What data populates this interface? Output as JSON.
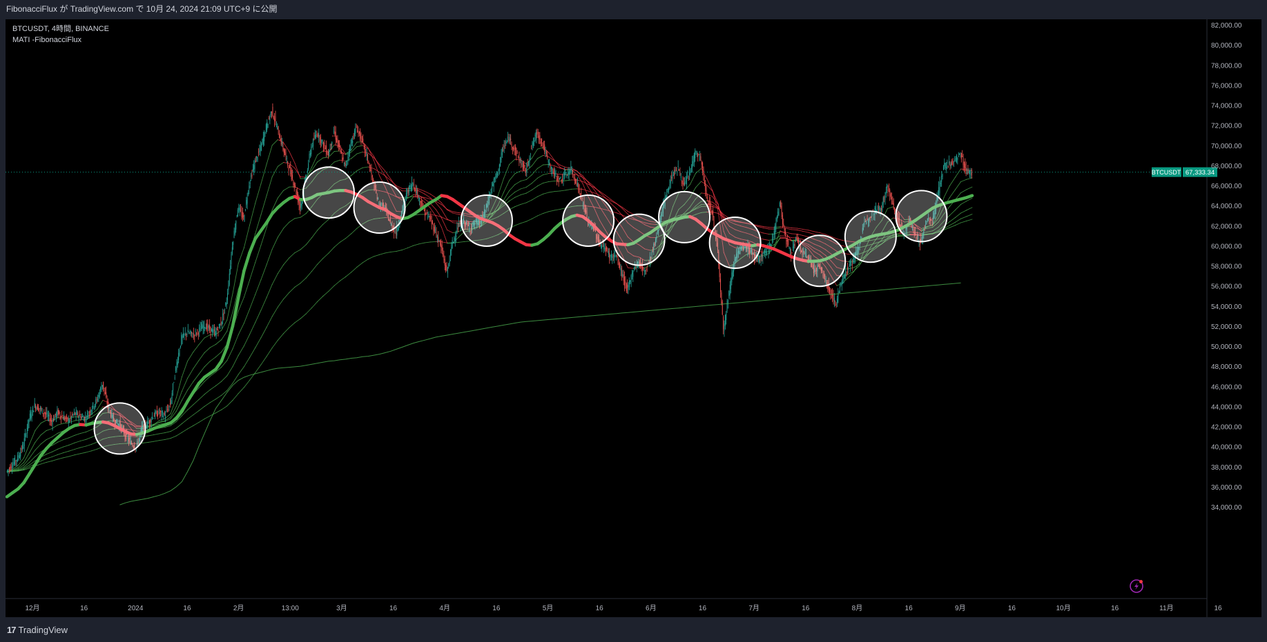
{
  "header": {
    "published_text": "FibonacciFlux が TradingView.com で 10月 24, 2024 21:09 UTC+9 に公開"
  },
  "legend": {
    "symbol_line": "BTCUSDT, 4時間, BINANCE",
    "indicator_line": "MATI -FibonacciFlux"
  },
  "footer": {
    "logo_glyph": "17",
    "brand": "TradingView"
  },
  "price_tag": {
    "symbol": "BTCUSDT",
    "value": "67,333.34",
    "price": 67333.34
  },
  "colors": {
    "background": "#000000",
    "frame": "#1e222d",
    "bull": "#4caf50",
    "bear": "#f23645",
    "tag": "#089981",
    "highlight": "#ffffff"
  },
  "chart_data": {
    "type": "line",
    "title": "",
    "ylim": [
      33500,
      83000
    ],
    "y_ticks": [
      "82,000.00",
      "80,000.00",
      "78,000.00",
      "76,000.00",
      "74,000.00",
      "72,000.00",
      "70,000.00",
      "68,000.00",
      "66,000.00",
      "64,000.00",
      "62,000.00",
      "60,000.00",
      "58,000.00",
      "56,000.00",
      "54,000.00",
      "52,000.00",
      "50,000.00",
      "48,000.00",
      "46,000.00",
      "44,000.00",
      "42,000.00",
      "40,000.00",
      "38,000.00",
      "36,000.00",
      "34,000.00"
    ],
    "x_ticks": [
      "12月",
      "16",
      "2024",
      "16",
      "2月",
      "13:00",
      "3月",
      "16",
      "4月",
      "16",
      "5月",
      "16",
      "6月",
      "16",
      "7月",
      "16",
      "8月",
      "16",
      "9月",
      "16",
      "10月",
      "16",
      "11月",
      "16"
    ],
    "x_tick_count": 24,
    "series": [
      {
        "role": "price",
        "values": [
          37500,
          38200,
          38900,
          40200,
          42800,
          44100,
          43700,
          43200,
          42500,
          43400,
          42900,
          42600,
          43300,
          43000,
          42800,
          43800,
          44600,
          46300,
          43900,
          42600,
          42200,
          41200,
          40400,
          39900,
          41800,
          42300,
          43100,
          43400,
          43100,
          44200,
          47800,
          50800,
          51400,
          51100,
          51500,
          52100,
          51700,
          51300,
          52300,
          54500,
          60100,
          63800,
          62700,
          66200,
          68300,
          69700,
          71800,
          73500,
          71600,
          69700,
          67800,
          66100,
          63800,
          66700,
          69900,
          71300,
          70200,
          69100,
          71400,
          69600,
          67800,
          70200,
          71800,
          70400,
          68600,
          66200,
          64100,
          63800,
          62200,
          61300,
          63300,
          65400,
          66300,
          64800,
          63400,
          62700,
          61400,
          59800,
          57300,
          60300,
          61900,
          62400,
          61700,
          62300,
          62400,
          63800,
          65900,
          67300,
          69800,
          70700,
          69600,
          68400,
          67400,
          69800,
          71300,
          70100,
          68300,
          67100,
          66500,
          67000,
          67600,
          66300,
          64500,
          62400,
          61800,
          60200,
          59800,
          58900,
          59000,
          57200,
          55500,
          57600,
          58400,
          57400,
          58700,
          60600,
          63200,
          65300,
          67200,
          67700,
          65900,
          67200,
          69300,
          68600,
          64800,
          63300,
          59600,
          51700,
          55400,
          58800,
          59600,
          59900,
          59400,
          58400,
          59200,
          59600,
          61400,
          64300,
          60700,
          59300,
          60700,
          59200,
          58900,
          57600,
          57900,
          56700,
          55300,
          54200,
          56700,
          57800,
          58500,
          60000,
          62200,
          63100,
          63600,
          63800,
          65900,
          64200,
          62400,
          61200,
          62700,
          60900,
          60300,
          62700,
          62500,
          65100,
          67900,
          68100,
          68400,
          69200,
          67400,
          67333
        ]
      },
      {
        "role": "ma-main",
        "values": [
          35000,
          35400,
          35800,
          36400,
          37300,
          38200,
          39100,
          39800,
          40400,
          40900,
          41400,
          41800,
          42100,
          42200,
          42150,
          42300,
          42400,
          42450,
          42350,
          42100,
          41800,
          41500,
          41250,
          41200,
          41350,
          41550,
          41800,
          42000,
          42150,
          42350,
          42800,
          43500,
          44500,
          45400,
          46300,
          46900,
          47300,
          47700,
          48500,
          49900,
          52000,
          54800,
          57500,
          59300,
          60700,
          61500,
          62300,
          63200,
          63800,
          64300,
          64700,
          64900,
          64600,
          64600,
          64800,
          65100,
          65200,
          65300,
          65450,
          65500,
          65500,
          65350,
          65100,
          64800,
          64400,
          64100,
          63800,
          63600,
          63200,
          62900,
          62700,
          62800,
          63100,
          63500,
          63900,
          64300,
          64600,
          65000,
          64900,
          64600,
          64200,
          63800,
          63400,
          63000,
          62700,
          62500,
          62300,
          62000,
          61600,
          61100,
          60700,
          60400,
          60100,
          60050,
          60200,
          60600,
          61100,
          61700,
          62200,
          62600,
          62900,
          63050,
          62900,
          62500,
          62000,
          61400,
          60900,
          60500,
          60200,
          60150,
          60100,
          60250,
          60600,
          61000,
          61300,
          61700,
          62100,
          62400,
          62600,
          62700,
          62850,
          62900,
          62650,
          62200,
          61700,
          61300,
          61000,
          60700,
          60500,
          60300,
          60200,
          60100,
          60000,
          60100,
          60000,
          59850,
          59650,
          59400,
          59150,
          58900,
          58700,
          58550,
          58450,
          58450,
          58500,
          58650,
          58900,
          59200,
          59500,
          59800,
          60100,
          60450,
          60700,
          60900,
          61050,
          61150,
          61250,
          61400,
          61600,
          61900,
          62200,
          62550,
          62950,
          63350,
          63750,
          64000,
          64200,
          64350,
          64500,
          64650,
          64800,
          65000
        ]
      },
      {
        "role": "ma-long",
        "values": [
          null,
          null,
          null,
          null,
          null,
          null,
          null,
          null,
          null,
          null,
          null,
          null,
          null,
          null,
          null,
          null,
          null,
          null,
          null,
          null,
          34200,
          34400,
          34550,
          34650,
          34750,
          34850,
          35000,
          35150,
          35350,
          35600,
          36000,
          36500,
          37500,
          38600,
          40000,
          41300,
          42600,
          43800,
          44600,
          45400,
          46100,
          46600,
          46900,
          47100,
          47250,
          47400,
          47550,
          47700,
          47800,
          47850,
          47900,
          47950,
          48000,
          48100,
          48200,
          48300,
          48400,
          48500,
          48550,
          48650,
          48700,
          48800,
          48850,
          48950,
          49000,
          49100,
          49200,
          49350,
          49500,
          49700,
          49900,
          50100,
          50300,
          50450,
          50600,
          50750,
          50900,
          51000,
          51100,
          51200,
          51300,
          51400,
          51500,
          51600,
          51700,
          51800,
          51900,
          52000,
          52100,
          52200,
          52300,
          52400,
          52450,
          52500,
          52550,
          52600,
          52650,
          52700,
          52750,
          52800,
          52850,
          52900,
          52950,
          53000,
          53050,
          53100,
          53150,
          53200,
          53250,
          53300,
          53350,
          53400,
          53450,
          53500,
          53550,
          53600,
          53650,
          53700,
          53750,
          53800,
          53850,
          53900,
          53950,
          54000,
          54050,
          54100,
          54150,
          54200,
          54250,
          54300,
          54350,
          54400,
          54450,
          54500,
          54550,
          54600,
          54650,
          54700,
          54750,
          54800,
          54850,
          54900,
          54950,
          55000,
          55050,
          55100,
          55150,
          55200,
          55250,
          55300,
          55350,
          55400,
          55450,
          55500,
          55550,
          55600,
          55650,
          55700,
          55750,
          55800,
          55850,
          55900,
          55950,
          56000,
          56050,
          56100,
          56150,
          56200,
          56250,
          56300
        ]
      }
    ],
    "highlight_circles": 11
  }
}
